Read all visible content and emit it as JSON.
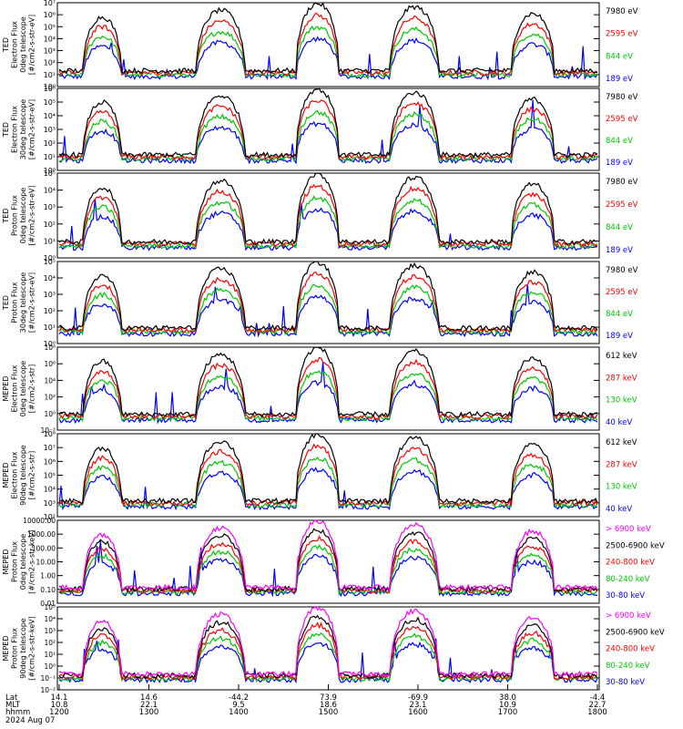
{
  "chart_data": {
    "type": "line",
    "x_axis": {
      "rows": [
        {
          "label": "Lat",
          "values": [
            "14.1",
            "14.6",
            "-44.2",
            "73.9",
            "-69.9",
            "38.0",
            "-4.4"
          ]
        },
        {
          "label": "MLT",
          "values": [
            "10.8",
            "22.1",
            "9.5",
            "18.6",
            "23.1",
            "10.9",
            "22.7"
          ]
        },
        {
          "label": "hhmm",
          "values": [
            "1200",
            "1300",
            "1400",
            "1500",
            "1600",
            "1700",
            "1800"
          ]
        }
      ],
      "date": "2024 Aug 07"
    },
    "panels": [
      {
        "ylabel": [
          "TED",
          "Electron Flux",
          "0deg telescope",
          "[#/cm2-s-str-eV]"
        ],
        "scale": "log",
        "ylim_exp": [
          0,
          7
        ],
        "tick_labels": [
          "10⁰",
          "10¹",
          "10²",
          "10³",
          "10⁴",
          "10⁵",
          "10⁶",
          "10⁷"
        ],
        "series": [
          {
            "name": "7980 eV",
            "color": "#000000"
          },
          {
            "name": "2595 eV",
            "color": "#ff0000"
          },
          {
            "name": "844 eV",
            "color": "#00c800"
          },
          {
            "name": "189 eV",
            "color": "#0000ff"
          }
        ]
      },
      {
        "ylabel": [
          "TED",
          "Electron Flux",
          "30deg telescope",
          "[#/cm2-s-str-eV]"
        ],
        "scale": "log",
        "ylim_exp": [
          0,
          6
        ],
        "tick_labels": [
          "10⁰",
          "10¹",
          "10²",
          "10³",
          "10⁴",
          "10⁵",
          "10⁶"
        ],
        "series": [
          {
            "name": "7980 eV",
            "color": "#000000"
          },
          {
            "name": "2595 eV",
            "color": "#ff0000"
          },
          {
            "name": "844 eV",
            "color": "#00c800"
          },
          {
            "name": "189 eV",
            "color": "#0000ff"
          }
        ]
      },
      {
        "ylabel": [
          "TED",
          "Proton Flux",
          "0deg telescope",
          "[#/cm2-s-str-eV]"
        ],
        "scale": "log",
        "ylim_exp": [
          0,
          5
        ],
        "tick_labels": [
          "10⁰",
          "10¹",
          "10²",
          "10³",
          "10⁴",
          "10⁵"
        ],
        "series": [
          {
            "name": "7980 eV",
            "color": "#000000"
          },
          {
            "name": "2595 eV",
            "color": "#ff0000"
          },
          {
            "name": "844 eV",
            "color": "#00c800"
          },
          {
            "name": "189 eV",
            "color": "#0000ff"
          }
        ]
      },
      {
        "ylabel": [
          "TED",
          "Proton Flux",
          "30deg telescope",
          "[#/cm2-s-str-eV]"
        ],
        "scale": "log",
        "ylim_exp": [
          0,
          5
        ],
        "tick_labels": [
          "10⁰",
          "10¹",
          "10²",
          "10³",
          "10⁴",
          "10⁵"
        ],
        "series": [
          {
            "name": "7980 eV",
            "color": "#000000"
          },
          {
            "name": "2595 eV",
            "color": "#ff0000"
          },
          {
            "name": "844 eV",
            "color": "#00c800"
          },
          {
            "name": "189 eV",
            "color": "#0000ff"
          }
        ]
      },
      {
        "ylabel": [
          "MEPED",
          "Electron Flux",
          "0deg telescope",
          "[#/cm2-s-str]"
        ],
        "scale": "log",
        "ylim_exp": [
          -2,
          8
        ],
        "tick_labels": [
          "10⁻²",
          "10⁰",
          "10²",
          "10⁴",
          "10⁶",
          "10⁸"
        ],
        "series": [
          {
            "name": "612 keV",
            "color": "#000000"
          },
          {
            "name": "287 keV",
            "color": "#ff0000"
          },
          {
            "name": "130 keV",
            "color": "#00c800"
          },
          {
            "name": "40 keV",
            "color": "#0000ff"
          }
        ]
      },
      {
        "ylabel": [
          "MEPED",
          "Electron Flux",
          "90deg telescope",
          "[#/cm2-s-str]"
        ],
        "scale": "log",
        "ylim_exp": [
          2,
          8
        ],
        "tick_labels": [
          "10²",
          "10³",
          "10⁴",
          "10⁵",
          "10⁶",
          "10⁷",
          "10⁸"
        ],
        "series": [
          {
            "name": "612 keV",
            "color": "#000000"
          },
          {
            "name": "287 keV",
            "color": "#ff0000"
          },
          {
            "name": "130 keV",
            "color": "#00c800"
          },
          {
            "name": "40 keV",
            "color": "#0000ff"
          }
        ]
      },
      {
        "ylabel": [
          "MEPED",
          "Proton Flux",
          "0deg telescope",
          "[#/cm2-s-str-keV]"
        ],
        "scale": "log",
        "ylim_exp": [
          -2,
          4
        ],
        "tick_labels": [
          "0.01",
          "0.10",
          "1.00",
          "10.00",
          "100.00",
          "1000.00",
          "10000.00"
        ],
        "series": [
          {
            "name": "> 6900 keV",
            "color": "#ff00ff"
          },
          {
            "name": "2500-6900 keV",
            "color": "#000000"
          },
          {
            "name": "240-800 keV",
            "color": "#ff0000"
          },
          {
            "name": "80-240 keV",
            "color": "#00c800"
          },
          {
            "name": "30-80 keV",
            "color": "#0000ff"
          }
        ]
      },
      {
        "ylabel": [
          "MEPED",
          "Proton Flux",
          "90deg telescope",
          "[#/cm2-s-str-keV]"
        ],
        "scale": "log",
        "ylim_exp": [
          -2,
          5
        ],
        "tick_labels": [
          "10⁻²",
          "10⁻¹",
          "10⁰",
          "10¹",
          "10²",
          "10³",
          "10⁴",
          "10⁵"
        ],
        "series": [
          {
            "name": "> 6900 keV",
            "color": "#ff00ff"
          },
          {
            "name": "2500-6900 keV",
            "color": "#000000"
          },
          {
            "name": "240-800 keV",
            "color": "#ff0000"
          },
          {
            "name": "80-240 keV",
            "color": "#00c800"
          },
          {
            "name": "30-80 keV",
            "color": "#0000ff"
          }
        ]
      }
    ]
  }
}
